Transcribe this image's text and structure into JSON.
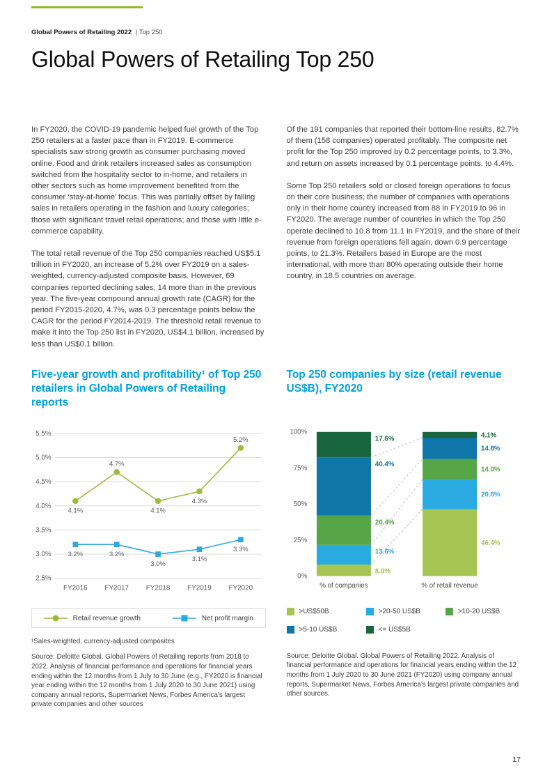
{
  "header": {
    "eyebrow_bold": "Global Powers of Retailing 2022",
    "eyebrow_rest": "| Top 250",
    "title": "Global Powers of Retailing Top 250"
  },
  "intro": {
    "col1_p1": "In FY2020, the COVID-19 pandemic helped fuel growth of the Top 250 retailers at a faster pace than in FY2019. E-commerce specialists saw strong growth as consumer purchasing moved online. Food and drink retailers increased sales as consumption switched from the hospitality sector to in-home, and retailers in other sectors such as home improvement benefited from the consumer ‘stay-at-home’ focus. This was partially offset by falling sales in retailers operating in the fashion and luxury categories; those with significant travel retail operations; and those with little e-commerce capability.",
    "col1_p2": "The total retail revenue of the Top 250 companies reached US$5.1 trillion in FY2020, an increase of 5.2% over FY2019 on a sales-weighted, currency-adjusted composite basis. However, 69 companies reported declining sales, 14 more than in the previous year. The five-year compound annual growth rate (CAGR) for the period FY2015-2020, 4.7%, was 0.3 percentage points below the CAGR for the period FY2014-2019. The threshold retail revenue to make it into the Top 250 list in FY2020, US$4.1 billion, increased by less than US$0.1 billion.",
    "col2_p1": "Of the 191 companies that reported their bottom-line results, 82.7% of them (158 companies) operated profitably. The composite net profit for the Top 250 improved by 0.2 percentage points, to 3.3%, and return on assets increased by 0.1 percentage points, to 4.4%.",
    "col2_p2": "Some Top 250 retailers sold or closed foreign operations to focus on their core business; the number of companies with operations only in their home country increased from 88 in FY2019 to 96 in FY2020. The average number of countries in which the Top 250 operate declined to 10.8 from 11.1 in FY2019, and the share of their revenue from foreign operations fell again, down 0.9 percentage points, to 21.3%. Retailers based in Europe are the most international, with more than 80% operating outside their home country, in 18.5 countries on average."
  },
  "charts": {
    "line": {
      "heading": "Five-year growth and profitability¹ of Top 250 retailers in Global Powers of Retailing reports",
      "footnote": "¹Sales-weighted, currency-adjusted composites",
      "source": "Source: Deloitte Global. Global Powers of Retailing reports from 2018 to 2022. Analysis of financial performance and operations for financial years ending within the 12 months from 1 July to 30 June (e.g., FY2020 is financial year ending within the 12 months from 1 July 2020 to 30 June 2021) using company annual reports, Supermarket News, Forbes America’s largest private companies and other sources"
    },
    "bar": {
      "heading": "Top 250 companies by size (retail revenue US$B), FY2020",
      "source": "Source: Deloitte Global. Global Powers of Retailing 2022. Analysis of financial performance and operations for financial years ending within the 12 months from 1 July 2020 to 30 June 2021 (FY2020) using company annual reports, Supermarket News, Forbes America’s largest private companies and other sources."
    }
  },
  "chart_data": [
    {
      "type": "line",
      "title": "Five-year growth and profitability of Top 250 retailers in Global Powers of Retailing reports",
      "categories": [
        "FY2016",
        "FY2017",
        "FY2018",
        "FY2019",
        "FY2020"
      ],
      "series": [
        {
          "name": "Retail revenue growth",
          "marker": "circle",
          "color": "#9bbb3c",
          "values": [
            4.1,
            4.7,
            4.1,
            4.3,
            5.2
          ]
        },
        {
          "name": "Net profit margin",
          "marker": "square",
          "color": "#2fa8dc",
          "values": [
            3.2,
            3.2,
            3.0,
            3.1,
            3.3
          ]
        }
      ],
      "ylim": [
        2.5,
        5.5
      ],
      "ytick_step": 0.5,
      "yticks": [
        "2.5%",
        "3.0%",
        "3.5%",
        "4.0%",
        "4.5%",
        "5.0%",
        "5.5%"
      ],
      "grid": true,
      "legend_position": "bottom"
    },
    {
      "type": "bar",
      "stacked": true,
      "title": "Top 250 companies by size (retail revenue US$B), FY2020",
      "categories": [
        "% of companies",
        "% of retail revenue"
      ],
      "series": [
        {
          "name": ">US$50B",
          "color": "#a6c553",
          "values": [
            8.0,
            46.4
          ]
        },
        {
          "name": ">20-50 US$B",
          "color": "#29aae1",
          "values": [
            13.6,
            20.8
          ]
        },
        {
          "name": ">10-20 US$B",
          "color": "#56a546",
          "values": [
            20.4,
            14.0
          ]
        },
        {
          "name": ">5-10 US$B",
          "color": "#0e76a8",
          "values": [
            40.4,
            14.8
          ]
        },
        {
          "name": "<= US$5B",
          "color": "#19653e",
          "values": [
            17.6,
            4.1
          ]
        }
      ],
      "ylim": [
        0,
        100
      ],
      "yticks": [
        "0%",
        "25%",
        "50%",
        "75%",
        "100%"
      ],
      "legend_position": "bottom"
    }
  ],
  "footer": {
    "page_number": "17"
  },
  "colors": {
    "accent_green": "#86bc25",
    "heading_blue": "#00a1de"
  }
}
